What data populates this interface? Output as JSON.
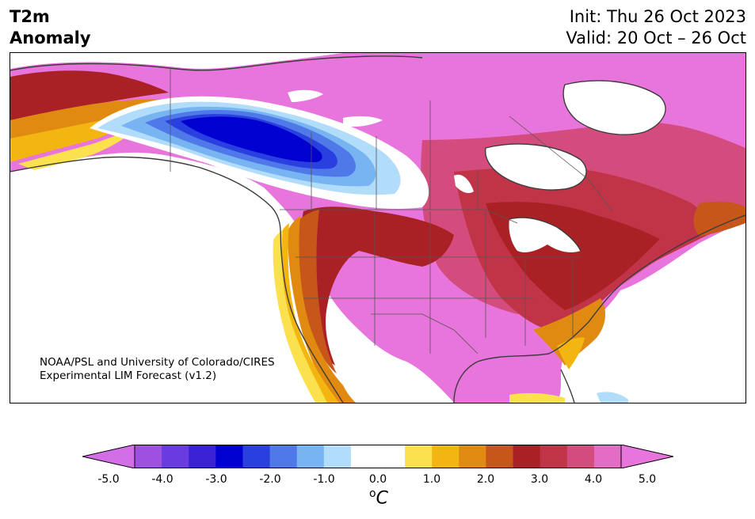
{
  "header": {
    "variable": "T2m",
    "kind": "Anomaly",
    "init": "Init: Thu 26 Oct 2023",
    "valid": "Valid: 20 Oct – 26 Oct"
  },
  "credit": {
    "line1": "NOAA/PSL and University of Colorado/CIRES",
    "line2": "Experimental LIM Forecast (v1.2)"
  },
  "colorbar": {
    "ticks": [
      "-5.0",
      "-4.0",
      "-3.0",
      "-2.0",
      "-1.0",
      "0.0",
      "1.0",
      "2.0",
      "3.0",
      "4.0",
      "5.0"
    ],
    "unit": "C",
    "unit_prefix": "o",
    "colors": [
      "#d36fe6",
      "#a050e0",
      "#6a3be0",
      "#3b22d6",
      "#0000d0",
      "#2a3fe0",
      "#4f79e8",
      "#78b3f2",
      "#b1dcfa",
      "#ffffff",
      "#ffffff",
      "#fbe14e",
      "#f3b50f",
      "#e08a12",
      "#c7561a",
      "#a92125",
      "#c13448",
      "#d34c7d",
      "#e36cc4",
      "#e875dc"
    ]
  },
  "map": {
    "region": "North America",
    "palette": {
      "magenta": "#e875dc",
      "pink": "#d34c7d",
      "crimson": "#c13448",
      "red": "#a92125",
      "rust": "#c7561a",
      "orange": "#e08a12",
      "gold": "#f3b50f",
      "yellow": "#fbe14e",
      "lightblue": "#b1dcfa",
      "skyblue": "#78b3f2",
      "blue": "#4f79e8",
      "royal": "#2a3fe0",
      "navy": "#0000d0",
      "coast": "#3c3c3c"
    }
  }
}
